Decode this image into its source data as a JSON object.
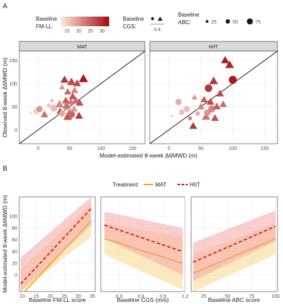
{
  "panel_a": {
    "letter": "A",
    "legend": {
      "fill_title": "Baseline\nFM-LL:",
      "fill_ticks": [
        "15",
        "20",
        "25",
        "30"
      ],
      "shape_title": "Baseline\nCGS:",
      "shape_tick": "0.4",
      "size_title": "Baseline\nABC:",
      "size_ticks": [
        "25",
        "50",
        "75"
      ]
    },
    "xlabel": "Model-estimated 8-week Δ6MWD (m)",
    "ylabel": "Observed 8-week Δ6MWD (m)",
    "xticks": [
      "0",
      "50",
      "100",
      "150"
    ],
    "yticks": [
      "0",
      "50",
      "100",
      "150"
    ],
    "strips": [
      "MAT",
      "HIIT"
    ]
  },
  "panel_b": {
    "letter": "B",
    "legend_title": "Treatment:",
    "legend_items": [
      "MAT",
      "HIIT"
    ],
    "ylabel": "Model-estimated 8-week Δ6MWD (m)",
    "yticks": [
      "0",
      "20",
      "40",
      "60",
      "80",
      "100"
    ]
  },
  "colors": {
    "mat": "#f5a300",
    "mat_band": "#f7d98a",
    "hiit": "#d7191c",
    "hiit_band": "#f4a6a6",
    "strip_bg": "#d9d9d9",
    "fill_low": "#fde5d8",
    "fill_high": "#a50f15"
  },
  "chart_data": [
    {
      "type": "scatter",
      "facet": "MAT",
      "xlabel": "Model-estimated 8-week Δ6MWD (m)",
      "ylabel": "Observed 8-week Δ6MWD (m)",
      "xlim": [
        -30,
        170
      ],
      "ylim": [
        -30,
        170
      ],
      "reference_line": "identity",
      "fill_variable": "Baseline FM-LL",
      "shape_variable": "Baseline CGS",
      "size_variable": "Baseline ABC",
      "points": [
        {
          "x": -12,
          "y": 37,
          "fmll": 14,
          "abc": 14,
          "shape": "triangle"
        },
        {
          "x": -3,
          "y": 40,
          "fmll": 14,
          "abc": 50,
          "shape": "circle"
        },
        {
          "x": 2,
          "y": 45,
          "fmll": 20,
          "abc": 50,
          "shape": "circle"
        },
        {
          "x": 10,
          "y": 33,
          "fmll": 24,
          "abc": 60,
          "shape": "triangle"
        },
        {
          "x": 17,
          "y": 52,
          "fmll": 15,
          "abc": 30,
          "shape": "circle"
        },
        {
          "x": 22,
          "y": 63,
          "fmll": 16,
          "abc": 20,
          "shape": "circle"
        },
        {
          "x": 25,
          "y": 47,
          "fmll": 16,
          "abc": 60,
          "shape": "circle"
        },
        {
          "x": 34,
          "y": 55,
          "fmll": 22,
          "abc": 65,
          "shape": "triangle"
        },
        {
          "x": 35,
          "y": 40,
          "fmll": 28,
          "abc": 55,
          "shape": "triangle"
        },
        {
          "x": 38,
          "y": 35,
          "fmll": 18,
          "abc": 50,
          "shape": "circle"
        },
        {
          "x": 38,
          "y": 92,
          "fmll": 20,
          "abc": 40,
          "shape": "triangle"
        },
        {
          "x": 42,
          "y": 108,
          "fmll": 30,
          "abc": 65,
          "shape": "triangle"
        },
        {
          "x": 44,
          "y": 63,
          "fmll": 26,
          "abc": 60,
          "shape": "triangle"
        },
        {
          "x": 45,
          "y": 52,
          "fmll": 24,
          "abc": 65,
          "shape": "triangle"
        },
        {
          "x": 47,
          "y": 82,
          "fmll": 25,
          "abc": 55,
          "shape": "triangle"
        },
        {
          "x": 47,
          "y": 28,
          "fmll": 27,
          "abc": 70,
          "shape": "triangle"
        },
        {
          "x": 50,
          "y": 40,
          "fmll": 20,
          "abc": 60,
          "shape": "triangle"
        },
        {
          "x": 52,
          "y": 60,
          "fmll": 23,
          "abc": 55,
          "shape": "triangle"
        },
        {
          "x": 53,
          "y": 103,
          "fmll": 28,
          "abc": 70,
          "shape": "triangle"
        },
        {
          "x": 53,
          "y": 33,
          "fmll": 25,
          "abc": 60,
          "shape": "circle"
        },
        {
          "x": 55,
          "y": 72,
          "fmll": 27,
          "abc": 60,
          "shape": "triangle"
        },
        {
          "x": 57,
          "y": 45,
          "fmll": 20,
          "abc": 55,
          "shape": "triangle"
        },
        {
          "x": 58,
          "y": 85,
          "fmll": 22,
          "abc": 55,
          "shape": "triangle"
        },
        {
          "x": 60,
          "y": 63,
          "fmll": 24,
          "abc": 65,
          "shape": "triangle"
        },
        {
          "x": 62,
          "y": 100,
          "fmll": 28,
          "abc": 60,
          "shape": "triangle"
        },
        {
          "x": 65,
          "y": 30,
          "fmll": 30,
          "abc": 60,
          "shape": "triangle"
        },
        {
          "x": 66,
          "y": 58,
          "fmll": 27,
          "abc": 60,
          "shape": "triangle"
        },
        {
          "x": 72,
          "y": 110,
          "fmll": 33,
          "abc": 75,
          "shape": "triangle"
        }
      ]
    },
    {
      "type": "scatter",
      "facet": "HIIT",
      "xlabel": "Model-estimated 8-week Δ6MWD (m)",
      "ylabel": "Observed 8-week Δ6MWD (m)",
      "xlim": [
        -30,
        170
      ],
      "ylim": [
        -30,
        170
      ],
      "reference_line": "identity",
      "fill_variable": "Baseline FM-LL",
      "shape_variable": "Baseline CGS",
      "size_variable": "Baseline ABC",
      "points": [
        {
          "x": 5,
          "y": 30,
          "fmll": 13,
          "abc": 15,
          "shape": "circle"
        },
        {
          "x": 15,
          "y": 60,
          "fmll": 18,
          "abc": 50,
          "shape": "circle"
        },
        {
          "x": 20,
          "y": 38,
          "fmll": 16,
          "abc": 40,
          "shape": "circle"
        },
        {
          "x": 28,
          "y": 45,
          "fmll": 16,
          "abc": 50,
          "shape": "circle"
        },
        {
          "x": 33,
          "y": 25,
          "fmll": 22,
          "abc": 25,
          "shape": "circle"
        },
        {
          "x": 38,
          "y": 8,
          "fmll": 30,
          "abc": 60,
          "shape": "triangle"
        },
        {
          "x": 40,
          "y": 70,
          "fmll": 20,
          "abc": 40,
          "shape": "triangle"
        },
        {
          "x": 45,
          "y": 35,
          "fmll": 18,
          "abc": 30,
          "shape": "circle"
        },
        {
          "x": 50,
          "y": 50,
          "fmll": 22,
          "abc": 55,
          "shape": "triangle"
        },
        {
          "x": 55,
          "y": 65,
          "fmll": 26,
          "abc": 55,
          "shape": "triangle"
        },
        {
          "x": 58,
          "y": 28,
          "fmll": 24,
          "abc": 65,
          "shape": "triangle"
        },
        {
          "x": 60,
          "y": 37,
          "fmll": 20,
          "abc": 55,
          "shape": "circle"
        },
        {
          "x": 62,
          "y": 90,
          "fmll": 30,
          "abc": 65,
          "shape": "circle"
        },
        {
          "x": 65,
          "y": 60,
          "fmll": 28,
          "abc": 60,
          "shape": "triangle"
        },
        {
          "x": 67,
          "y": 45,
          "fmll": 22,
          "abc": 60,
          "shape": "circle"
        },
        {
          "x": 70,
          "y": 105,
          "fmll": 30,
          "abc": 70,
          "shape": "triangle"
        },
        {
          "x": 72,
          "y": 25,
          "fmll": 27,
          "abc": 60,
          "shape": "triangle"
        },
        {
          "x": 75,
          "y": 50,
          "fmll": 26,
          "abc": 60,
          "shape": "triangle"
        },
        {
          "x": 80,
          "y": 78,
          "fmll": 28,
          "abc": 60,
          "shape": "triangle"
        },
        {
          "x": 85,
          "y": 55,
          "fmll": 25,
          "abc": 55,
          "shape": "triangle"
        },
        {
          "x": 88,
          "y": 150,
          "fmll": 33,
          "abc": 65,
          "shape": "triangle"
        },
        {
          "x": 95,
          "y": 140,
          "fmll": 32,
          "abc": 70,
          "shape": "triangle"
        },
        {
          "x": 100,
          "y": 108,
          "fmll": 33,
          "abc": 70,
          "shape": "circle"
        }
      ]
    },
    {
      "type": "line",
      "xlabel": "Baseline FM-LL score",
      "ylabel": "Model-estimated 8-week Δ6MWD (m)",
      "xlim": [
        9,
        36
      ],
      "ylim": [
        -28,
        133
      ],
      "xticks": [
        10,
        15,
        20,
        25,
        30,
        35
      ],
      "legend_title": "Treatment:",
      "series": [
        {
          "name": "MAT",
          "x": [
            9.5,
            34.5
          ],
          "y": [
            -35,
            92
          ],
          "lower": [
            -80,
            65
          ],
          "upper": [
            10,
            120
          ]
        },
        {
          "name": "HIIT",
          "x": [
            9.5,
            34.5
          ],
          "y": [
            -15,
            113
          ],
          "lower": [
            -60,
            85
          ],
          "upper": [
            30,
            142
          ]
        }
      ]
    },
    {
      "type": "line",
      "xlabel": "Baseline CGS (m/s)",
      "ylabel": "Model-estimated 8-week Δ6MWD (m)",
      "xlim": [
        0.05,
        1.2
      ],
      "ylim": [
        -28,
        133
      ],
      "xticks": [
        0.3,
        0.6,
        0.9,
        1.2
      ],
      "legend_title": "Treatment:",
      "series": [
        {
          "name": "MAT",
          "x": [
            0.1,
            1.17
          ],
          "y": [
            62,
            20
          ],
          "lower": [
            35,
            -25
          ],
          "upper": [
            88,
            65
          ]
        },
        {
          "name": "HIIT",
          "x": [
            0.1,
            1.17
          ],
          "y": [
            85,
            40
          ],
          "lower": [
            62,
            0
          ],
          "upper": [
            108,
            80
          ]
        }
      ]
    },
    {
      "type": "line",
      "xlabel": "Baseline ABC score",
      "ylabel": "Model-estimated 8-week Δ6MWD (m)",
      "xlim": [
        12,
        102
      ],
      "ylim": [
        -28,
        133
      ],
      "xticks": [
        25,
        50,
        75,
        100
      ],
      "legend_title": "Treatment:",
      "series": [
        {
          "name": "MAT",
          "x": [
            14,
            100
          ],
          "y": [
            3,
            62
          ],
          "lower": [
            -30,
            35
          ],
          "upper": [
            35,
            88
          ]
        },
        {
          "name": "HIIT",
          "x": [
            14,
            100
          ],
          "y": [
            22,
            83
          ],
          "lower": [
            -10,
            58
          ],
          "upper": [
            55,
            110
          ]
        }
      ]
    }
  ]
}
